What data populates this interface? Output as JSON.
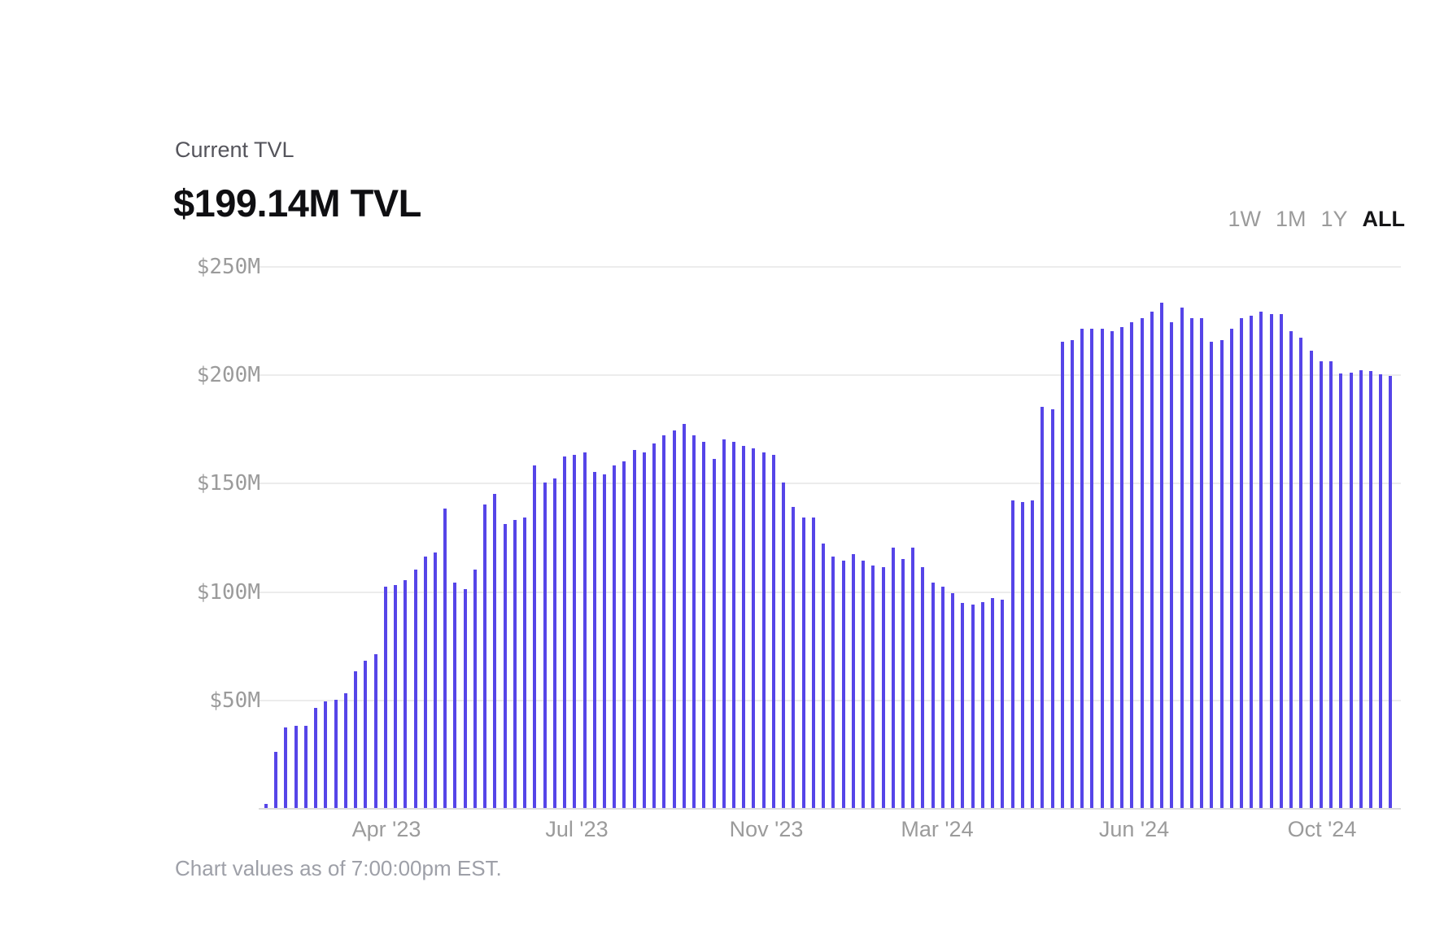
{
  "header": {
    "label": "Current TVL",
    "value": "$199.14M TVL"
  },
  "range_selector": {
    "options": [
      {
        "label": "1W",
        "active": false
      },
      {
        "label": "1M",
        "active": false
      },
      {
        "label": "1Y",
        "active": false
      },
      {
        "label": "ALL",
        "active": true
      }
    ]
  },
  "chart_data": {
    "type": "bar",
    "title": "TVL history (ALL range)",
    "unit": "USD millions",
    "ylim": [
      0,
      250
    ],
    "grid": "horizontal",
    "legend": "none",
    "bar_color": "#5645e8",
    "gridline_color": "#ececec",
    "y_ticks": [
      {
        "label": "$250M",
        "value": 250
      },
      {
        "label": "$200M",
        "value": 200
      },
      {
        "label": "$150M",
        "value": 150
      },
      {
        "label": "$100M",
        "value": 100
      },
      {
        "label": "$50M",
        "value": 50
      }
    ],
    "x_ticks": [
      {
        "label": "Apr '23",
        "pct": 10.8
      },
      {
        "label": "Jul '23",
        "pct": 27.6
      },
      {
        "label": "Nov '23",
        "pct": 44.4
      },
      {
        "label": "Mar '24",
        "pct": 59.5
      },
      {
        "label": "Jun '24",
        "pct": 76.9
      },
      {
        "label": "Oct '24",
        "pct": 93.5
      }
    ],
    "values_musd": [
      2,
      26,
      37,
      38,
      38,
      46,
      49,
      50,
      53,
      63,
      68,
      71,
      102,
      103,
      105,
      110,
      116,
      118,
      138,
      104,
      101,
      110,
      140,
      145,
      131,
      133,
      134,
      158,
      150,
      152,
      162,
      163,
      164,
      155,
      154,
      158,
      160,
      165,
      164,
      168,
      172,
      174,
      177,
      172,
      169,
      161,
      170,
      169,
      167,
      166,
      164,
      163,
      150,
      139,
      134,
      134,
      122,
      116,
      114,
      117,
      114,
      112,
      111,
      120,
      115,
      120,
      111,
      104,
      102,
      99,
      94.5,
      94,
      95,
      97,
      96,
      142,
      141,
      142,
      185,
      184,
      215,
      216,
      221,
      221,
      221,
      220,
      222,
      224,
      226,
      229,
      233,
      224,
      231,
      226,
      226,
      215,
      216,
      221,
      226,
      227,
      229,
      228,
      228,
      220,
      217,
      211,
      206,
      206,
      200.5,
      201,
      202,
      201.5,
      200,
      199.14
    ]
  },
  "footer": {
    "note": "Chart values as of 7:00:00pm EST."
  }
}
